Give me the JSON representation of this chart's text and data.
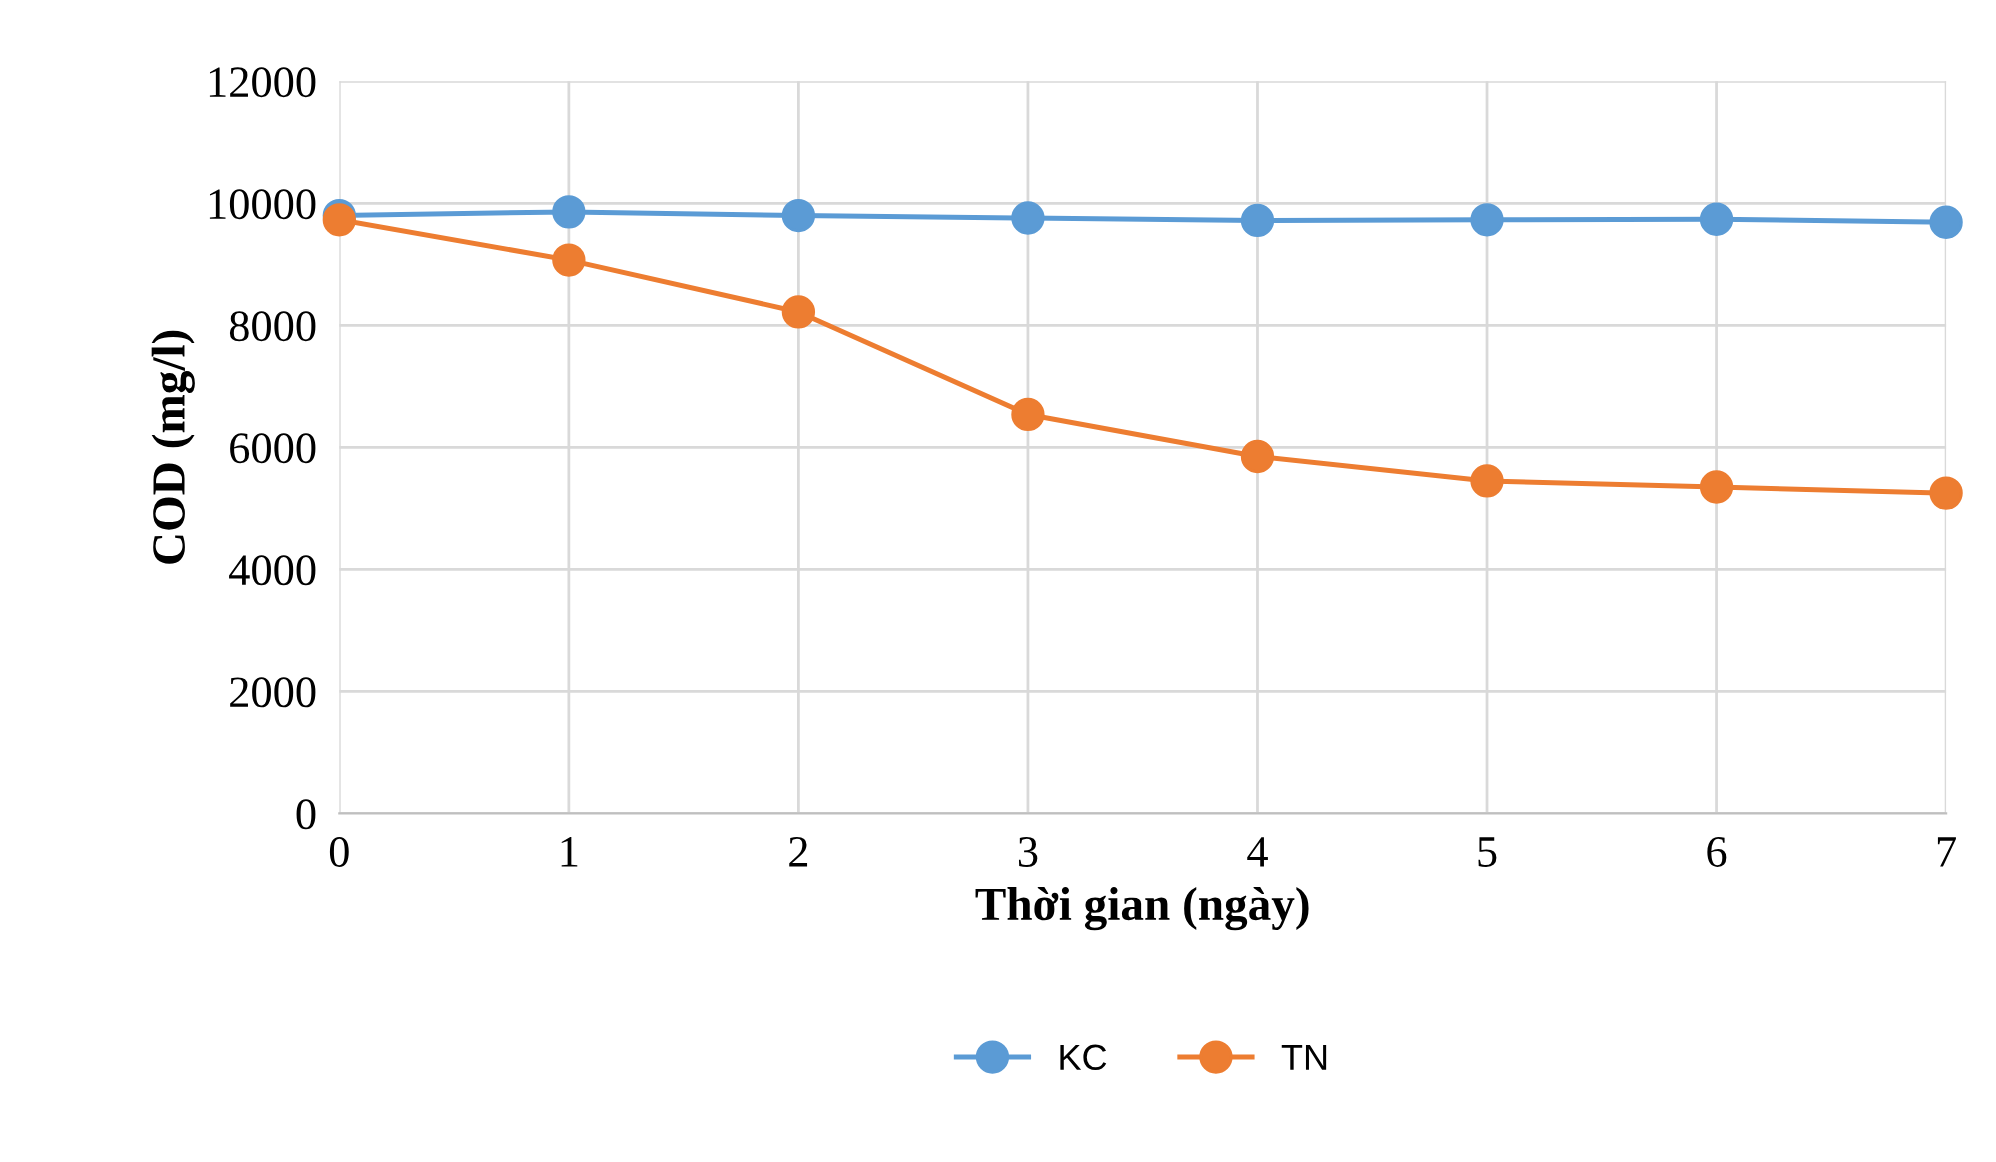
{
  "chart_data": {
    "type": "line",
    "xlabel": "Thời gian (ngày)",
    "ylabel": "COD (mg/l)",
    "x": [
      0,
      1,
      2,
      3,
      4,
      5,
      6,
      7
    ],
    "series": [
      {
        "name": "KC",
        "color": "#5b9bd5",
        "values": [
          9800,
          9860,
          9800,
          9760,
          9720,
          9730,
          9740,
          9690
        ]
      },
      {
        "name": "TN",
        "color": "#ed7d31",
        "values": [
          9730,
          9070,
          8220,
          6540,
          5850,
          5450,
          5350,
          5250
        ]
      }
    ],
    "xlim": [
      0,
      7
    ],
    "xticks": [
      0,
      1,
      2,
      3,
      4,
      5,
      6,
      7
    ],
    "ylim": [
      0,
      12000
    ],
    "yticks": [
      0,
      2000,
      4000,
      6000,
      8000,
      10000,
      12000
    ],
    "grid": true,
    "legend": "bottom",
    "marker": "circle",
    "line_style": "solid"
  }
}
